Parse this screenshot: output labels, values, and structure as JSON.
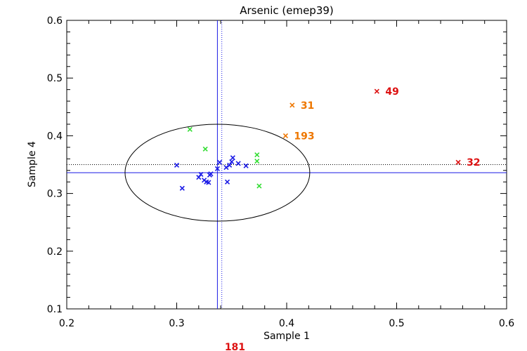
{
  "chart_data": {
    "type": "scatter",
    "title": "Arsenic (emep39)",
    "xlabel": "Sample 1",
    "ylabel": "Sample 4",
    "xlim": [
      0.2,
      0.6
    ],
    "ylim": [
      0.1,
      0.6
    ],
    "xticks": [
      "0.2",
      "0.3",
      "0.4",
      "0.5",
      "0.6"
    ],
    "yticks": [
      "0.1",
      "0.2",
      "0.3",
      "0.4",
      "0.5",
      "0.6"
    ],
    "grid": false,
    "colors": {
      "blue": "#1a1ae6",
      "green": "#33dd33",
      "orange": "#ee7700",
      "red": "#dd1111",
      "axis": "#000000"
    },
    "reference_lines": {
      "solid_x": 0.337,
      "solid_y": 0.336,
      "dotted_x": 0.341,
      "dotted_y": 0.35
    },
    "ellipse": {
      "cx": 0.337,
      "cy": 0.336,
      "rx": 0.084,
      "ry": 0.084
    },
    "series": [
      {
        "color": "blue",
        "points": [
          [
            0.3,
            0.349
          ],
          [
            0.305,
            0.309
          ],
          [
            0.32,
            0.328
          ],
          [
            0.322,
            0.333
          ],
          [
            0.325,
            0.323
          ],
          [
            0.327,
            0.32
          ],
          [
            0.329,
            0.319
          ],
          [
            0.33,
            0.332
          ],
          [
            0.331,
            0.334
          ],
          [
            0.337,
            0.343
          ],
          [
            0.339,
            0.354
          ],
          [
            0.345,
            0.345
          ],
          [
            0.346,
            0.32
          ],
          [
            0.348,
            0.349
          ],
          [
            0.35,
            0.355
          ],
          [
            0.351,
            0.362
          ],
          [
            0.356,
            0.352
          ],
          [
            0.363,
            0.348
          ]
        ]
      },
      {
        "color": "green",
        "points": [
          [
            0.312,
            0.411
          ],
          [
            0.326,
            0.377
          ],
          [
            0.373,
            0.367
          ],
          [
            0.373,
            0.356
          ],
          [
            0.375,
            0.313
          ]
        ]
      },
      {
        "color": "orange",
        "points": [
          [
            0.399,
            0.4
          ],
          [
            0.405,
            0.453
          ]
        ],
        "labels": [
          "193",
          "31"
        ]
      },
      {
        "color": "red",
        "points": [
          [
            0.482,
            0.477
          ],
          [
            0.556,
            0.354
          ]
        ],
        "labels": [
          "49",
          "32"
        ]
      }
    ],
    "outside_labels": [
      {
        "text": "181",
        "color": "red",
        "x": 0.353
      }
    ]
  }
}
